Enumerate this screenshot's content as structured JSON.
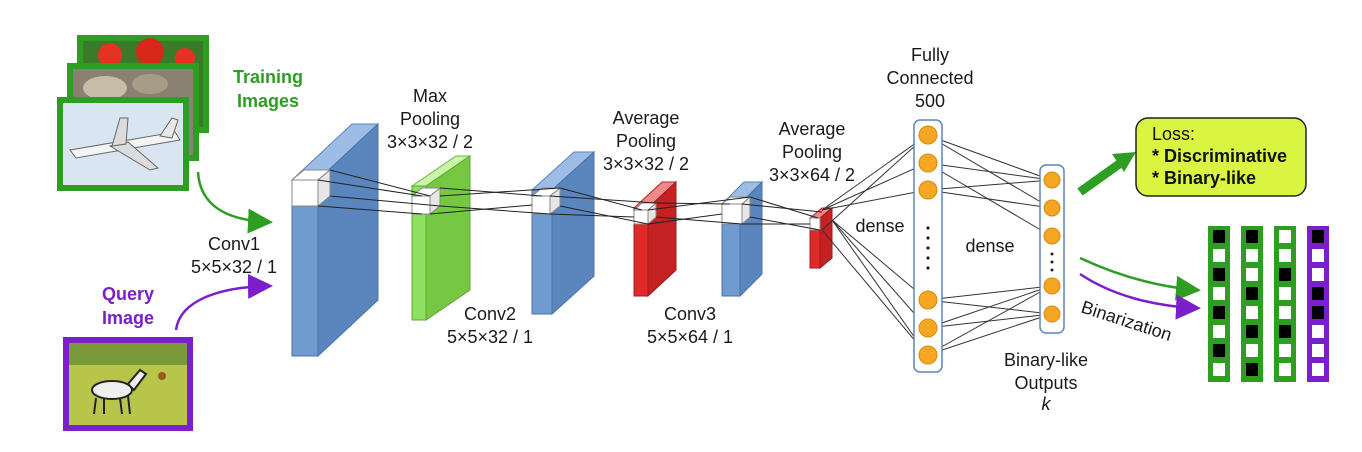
{
  "inputs": {
    "training_label_line1": "Training",
    "training_label_line2": "Images",
    "query_label_line1": "Query",
    "query_label_line2": "Image"
  },
  "layers": {
    "conv1_name": "Conv1",
    "conv1_params": "5×5×32 / 1",
    "maxpool_line1": "Max",
    "maxpool_line2": "Pooling",
    "maxpool_params": "3×3×32 / 2",
    "conv2_name": "Conv2",
    "conv2_params": "5×5×32 / 1",
    "avgpool1_line1": "Average",
    "avgpool1_line2": "Pooling",
    "avgpool1_params": "3×3×32 / 2",
    "conv3_name": "Conv3",
    "conv3_params": "5×5×64 / 1",
    "avgpool2_line1": "Average",
    "avgpool2_line2": "Pooling",
    "avgpool2_params": "3×3×64 / 2",
    "fc_line1": "Fully",
    "fc_line2": "Connected",
    "fc_line3": "500",
    "dense1": "dense",
    "dense2": "dense",
    "outputs_line1": "Binary-like",
    "outputs_line2": "Outputs",
    "outputs_line3": "k"
  },
  "loss": {
    "title": "Loss:",
    "item1": "* Discriminative",
    "item2": "* Binary-like"
  },
  "binarization": "Binarization",
  "colors": {
    "conv_blue": "#6f9bd1",
    "maxpool_green": "#8fe060",
    "avgpool_red": "#e02a2a",
    "node_orange": "#f5a623",
    "green": "#2e9e23",
    "purple": "#7a1fc9",
    "loss_fill": "#d9f542"
  },
  "binary_codes": [
    {
      "border": "green",
      "bits": [
        1,
        0,
        1,
        0,
        1,
        0,
        1,
        0
      ]
    },
    {
      "border": "green",
      "bits": [
        1,
        0,
        0,
        1,
        0,
        1,
        0,
        1
      ]
    },
    {
      "border": "green",
      "bits": [
        0,
        0,
        1,
        0,
        0,
        1,
        0,
        0
      ]
    },
    {
      "border": "purple",
      "bits": [
        1,
        0,
        0,
        1,
        1,
        0,
        0,
        0
      ]
    }
  ]
}
